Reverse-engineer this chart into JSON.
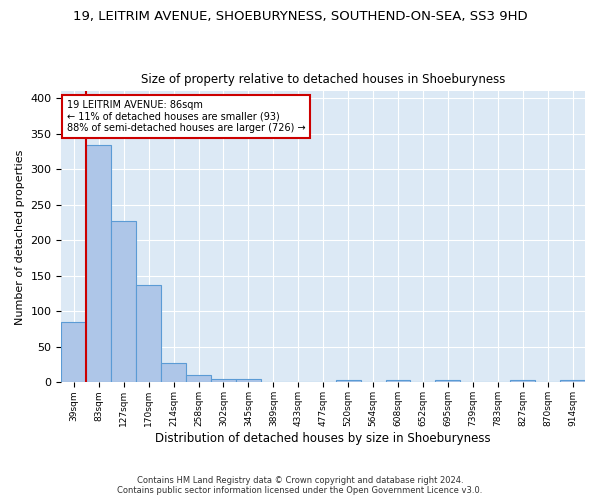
{
  "title": "19, LEITRIM AVENUE, SHOEBURYNESS, SOUTHEND-ON-SEA, SS3 9HD",
  "subtitle": "Size of property relative to detached houses in Shoeburyness",
  "xlabel": "Distribution of detached houses by size in Shoeburyness",
  "ylabel": "Number of detached properties",
  "categories": [
    "39sqm",
    "83sqm",
    "127sqm",
    "170sqm",
    "214sqm",
    "258sqm",
    "302sqm",
    "345sqm",
    "389sqm",
    "433sqm",
    "477sqm",
    "520sqm",
    "564sqm",
    "608sqm",
    "652sqm",
    "695sqm",
    "739sqm",
    "783sqm",
    "827sqm",
    "870sqm",
    "914sqm"
  ],
  "values": [
    85,
    335,
    228,
    137,
    28,
    10,
    5,
    5,
    0,
    0,
    0,
    3,
    0,
    3,
    0,
    3,
    0,
    0,
    3,
    0,
    3
  ],
  "bar_color": "#aec6e8",
  "bar_edge_color": "#5b9bd5",
  "vline_x": 0.5,
  "vline_color": "#cc0000",
  "annotation_title": "19 LEITRIM AVENUE: 86sqm",
  "annotation_line1": "← 11% of detached houses are smaller (93)",
  "annotation_line2": "88% of semi-detached houses are larger (726) →",
  "annotation_box_color": "#ffffff",
  "annotation_border_color": "#cc0000",
  "footer1": "Contains HM Land Registry data © Crown copyright and database right 2024.",
  "footer2": "Contains public sector information licensed under the Open Government Licence v3.0.",
  "ylim": [
    0,
    410
  ],
  "plot_bg_color": "#dce9f5",
  "title_fontsize": 9.5,
  "subtitle_fontsize": 8.5,
  "ylabel_fontsize": 8,
  "xlabel_fontsize": 8.5
}
